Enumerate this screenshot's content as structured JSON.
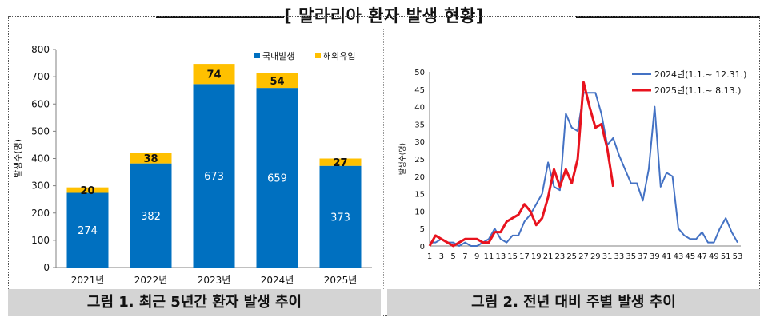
{
  "header": {
    "title": "[ 말라리아 환자 발생 현황]"
  },
  "chart_data": [
    {
      "type": "bar",
      "stacked": true,
      "categories": [
        "2021년",
        "2022년",
        "2023년",
        "2024년",
        "2025년"
      ],
      "series": [
        {
          "name": "국내발생",
          "values": [
            274,
            382,
            673,
            659,
            373
          ],
          "color": "#0070C0"
        },
        {
          "name": "해외유입",
          "values": [
            20,
            38,
            74,
            54,
            27
          ],
          "color": "#FFC000"
        }
      ],
      "ylabel": "발생수(명)",
      "ylim": [
        0,
        800
      ],
      "yticks": [
        0,
        100,
        200,
        300,
        400,
        500,
        600,
        700,
        800
      ],
      "grid": false,
      "legend": "top-right",
      "caption": "그림 1. 최근 5년간 환자 발생 추이"
    },
    {
      "type": "line",
      "ylabel": "발생수(명)",
      "ylim": [
        0,
        50
      ],
      "yticks": [
        0,
        5,
        10,
        15,
        20,
        25,
        30,
        35,
        40,
        45,
        50
      ],
      "xticks": [
        1,
        3,
        5,
        7,
        9,
        11,
        13,
        15,
        17,
        19,
        21,
        23,
        25,
        27,
        29,
        31,
        33,
        35,
        37,
        39,
        41,
        43,
        45,
        47,
        49,
        51,
        53
      ],
      "xlim": [
        1,
        53
      ],
      "grid": false,
      "legend": "top-right",
      "series": [
        {
          "name": "2024년(1.1.~ 12.31.)",
          "color": "#4472C4",
          "x": [
            1,
            2,
            3,
            4,
            5,
            6,
            7,
            8,
            9,
            10,
            11,
            12,
            13,
            14,
            15,
            16,
            17,
            18,
            19,
            20,
            21,
            22,
            23,
            24,
            25,
            26,
            27,
            28,
            29,
            30,
            31,
            32,
            33,
            34,
            35,
            36,
            37,
            38,
            39,
            40,
            41,
            42,
            43,
            44,
            45,
            46,
            47,
            48,
            49,
            50,
            51,
            52,
            53
          ],
          "values": [
            1,
            1,
            2,
            1,
            1,
            0,
            1,
            0,
            0,
            1,
            2,
            5,
            2,
            1,
            3,
            3,
            7,
            9,
            12,
            15,
            24,
            17,
            16,
            38,
            34,
            33,
            44,
            44,
            44,
            38,
            29,
            31,
            26,
            22,
            18,
            18,
            13,
            22,
            40,
            17,
            21,
            20,
            5,
            3,
            2,
            2,
            4,
            1,
            1,
            5,
            8,
            4,
            1
          ]
        },
        {
          "name": "2025년(1.1.~ 8.13.)",
          "color": "#E8131E",
          "x": [
            1,
            2,
            3,
            4,
            5,
            6,
            7,
            8,
            9,
            10,
            11,
            12,
            13,
            14,
            15,
            16,
            17,
            18,
            19,
            20,
            21,
            22,
            23,
            24,
            25,
            26,
            27,
            28,
            29,
            30,
            31,
            32
          ],
          "values": [
            0,
            3,
            2,
            1,
            0,
            1,
            2,
            2,
            2,
            1,
            1,
            4,
            4,
            7,
            8,
            9,
            12,
            10,
            6,
            8,
            14,
            22,
            17,
            22,
            18,
            25,
            47,
            40,
            34,
            35,
            28,
            17
          ]
        }
      ],
      "caption": "그림 2. 전년 대비 주별 발생 추이"
    }
  ]
}
